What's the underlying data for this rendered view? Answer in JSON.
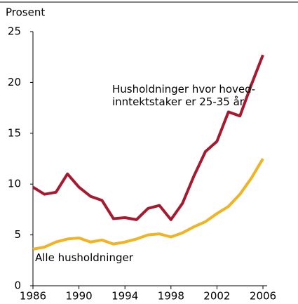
{
  "chart_data": {
    "type": "line",
    "ylabel": "Prosent",
    "x": [
      1986,
      1987,
      1988,
      1989,
      1990,
      1991,
      1992,
      1993,
      1994,
      1995,
      1996,
      1997,
      1998,
      1999,
      2000,
      2001,
      2002,
      2003,
      2004,
      2005,
      2006
    ],
    "series": [
      {
        "name": "Husholdninger hvor hoved-\ninntektstaker er 25-35 år",
        "color": "#a6192e",
        "values": [
          9.7,
          9.0,
          9.2,
          11.0,
          9.7,
          8.8,
          8.4,
          6.6,
          6.7,
          6.5,
          7.6,
          7.9,
          6.5,
          8.1,
          10.8,
          13.2,
          14.2,
          17.1,
          16.7,
          19.8,
          22.7
        ]
      },
      {
        "name": "Alle husholdninger",
        "color": "#f0b323",
        "values": [
          3.6,
          3.8,
          4.3,
          4.6,
          4.7,
          4.3,
          4.5,
          4.1,
          4.3,
          4.6,
          5.0,
          5.1,
          4.8,
          5.2,
          5.8,
          6.3,
          7.1,
          7.8,
          9.0,
          10.6,
          12.5
        ]
      }
    ],
    "xlim": [
      1986,
      2006
    ],
    "xticks": [
      1986,
      1990,
      1994,
      1998,
      2002,
      2006
    ],
    "ylim": [
      0,
      25
    ],
    "yticks": [
      0,
      5,
      10,
      15,
      20,
      25
    ],
    "grid": false
  }
}
